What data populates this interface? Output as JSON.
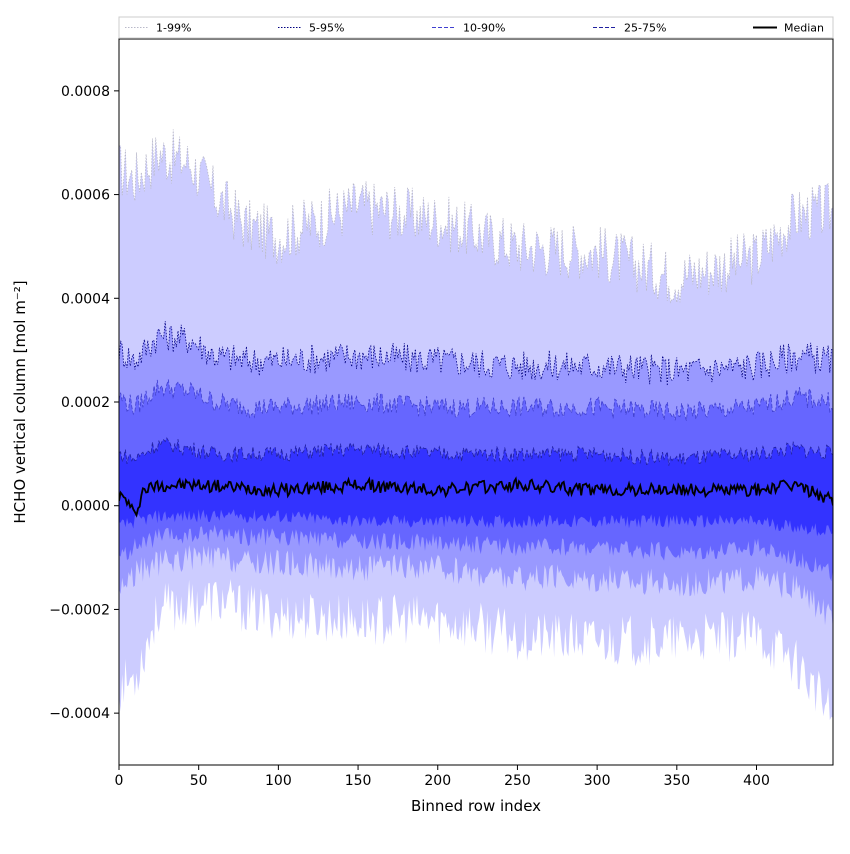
{
  "chart_data": {
    "type": "area",
    "title": "",
    "xlabel": "Binned row index",
    "ylabel": "HCHO vertical column [mol m⁻²]",
    "xlim": [
      0,
      448
    ],
    "ylim": [
      -0.0005,
      0.0009
    ],
    "xticks": [
      0,
      50,
      100,
      150,
      200,
      250,
      300,
      350,
      400
    ],
    "xtick_labels": [
      "0",
      "50",
      "100",
      "150",
      "200",
      "250",
      "300",
      "350",
      "400"
    ],
    "yticks": [
      -0.0004,
      -0.0002,
      0.0,
      0.0002,
      0.0004,
      0.0006,
      0.0008
    ],
    "ytick_labels": [
      "−0.0004",
      "−0.0002",
      "0.0000",
      "0.0002",
      "0.0004",
      "0.0006",
      "0.0008"
    ],
    "grid": false,
    "legend_position": "top",
    "series": [
      {
        "name": "1-99%",
        "fill": "#ccccff",
        "line": "#b9b9c9",
        "style": "dotted",
        "x": [
          0,
          10,
          25,
          45,
          60,
          80,
          100,
          150,
          200,
          250,
          300,
          350,
          400,
          425,
          448
        ],
        "lower": [
          -0.00035,
          -0.00033,
          -0.0002,
          -0.00019,
          -0.00018,
          -0.0002,
          -0.00021,
          -0.00022,
          -0.00022,
          -0.00025,
          -0.00026,
          -0.00026,
          -0.00025,
          -0.0003,
          -0.00041
        ],
        "upper": [
          0.00065,
          0.00063,
          0.00068,
          0.00066,
          0.0006,
          0.00054,
          0.00052,
          0.00058,
          0.00055,
          0.0005,
          0.00049,
          0.00044,
          0.00048,
          0.00056,
          0.00057
        ]
      },
      {
        "name": "5-95%",
        "fill": "#9999ff",
        "line": "#000080",
        "style": "dotted",
        "x": [
          0,
          10,
          25,
          45,
          60,
          80,
          100,
          150,
          200,
          250,
          300,
          350,
          400,
          425,
          448
        ],
        "lower": [
          -0.00016,
          -0.00013,
          -0.00011,
          -0.0001,
          -0.0001,
          -0.00011,
          -0.00011,
          -0.00012,
          -0.00012,
          -0.00014,
          -0.00014,
          -0.00015,
          -0.00014,
          -0.00016,
          -0.00022
        ],
        "upper": [
          0.0003,
          0.00028,
          0.00033,
          0.00032,
          0.00029,
          0.00028,
          0.00028,
          0.00029,
          0.00028,
          0.00027,
          0.00027,
          0.00026,
          0.00027,
          0.00029,
          0.00028
        ]
      },
      {
        "name": "10-90%",
        "fill": "#6666ff",
        "line": "#4040d0",
        "style": "dashed",
        "x": [
          0,
          10,
          25,
          45,
          60,
          80,
          100,
          150,
          200,
          250,
          300,
          350,
          400,
          425,
          448
        ],
        "lower": [
          -0.0001,
          -8e-05,
          -6e-05,
          -6e-05,
          -5e-05,
          -6e-05,
          -6e-05,
          -7e-05,
          -7e-05,
          -8e-05,
          -8e-05,
          -9e-05,
          -8e-05,
          -0.0001,
          -0.00013
        ],
        "upper": [
          0.00021,
          0.00019,
          0.00023,
          0.00022,
          0.0002,
          0.00019,
          0.00019,
          0.0002,
          0.00019,
          0.00019,
          0.00019,
          0.00018,
          0.00019,
          0.00021,
          0.0002
        ]
      },
      {
        "name": "25-75%",
        "fill": "#3333ff",
        "line": "#2020a0",
        "style": "dashed",
        "x": [
          0,
          10,
          25,
          45,
          60,
          80,
          100,
          150,
          200,
          250,
          300,
          350,
          400,
          425,
          448
        ],
        "lower": [
          -4e-05,
          -3e-05,
          -2e-05,
          -2e-05,
          -2e-05,
          -2e-05,
          -2e-05,
          -3e-05,
          -3e-05,
          -3e-05,
          -3e-05,
          -3e-05,
          -3e-05,
          -4e-05,
          -5e-05
        ],
        "upper": [
          0.0001,
          9e-05,
          0.00012,
          0.00011,
          0.0001,
          0.0001,
          0.0001,
          0.00011,
          0.0001,
          0.0001,
          0.0001,
          9e-05,
          0.0001,
          0.00011,
          0.0001
        ]
      },
      {
        "name": "Median",
        "line": "#000000",
        "style": "solid",
        "x": [
          0,
          5,
          10,
          15,
          25,
          50,
          100,
          150,
          200,
          250,
          300,
          350,
          400,
          425,
          448
        ],
        "values": [
          2e-05,
          1e-05,
          -2e-05,
          3e-05,
          4e-05,
          4e-05,
          3e-05,
          4e-05,
          3e-05,
          4e-05,
          3e-05,
          3e-05,
          3e-05,
          4e-05,
          1e-05
        ]
      }
    ]
  }
}
